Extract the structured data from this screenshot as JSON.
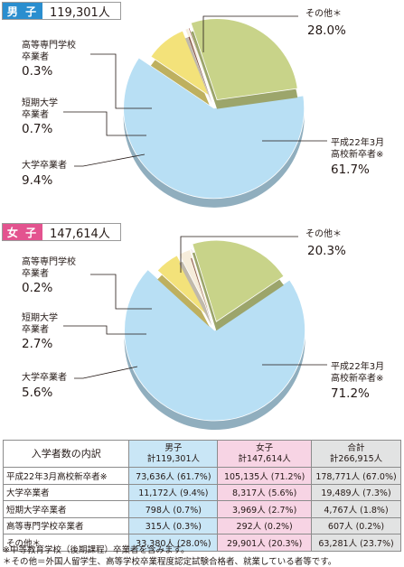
{
  "colors": {
    "male_tag": "#2a8ecf",
    "female_tag": "#e3538f",
    "hs": "#b8dff4",
    "other": "#c8d389",
    "univ": "#f3e27a",
    "jc": "#f6eddb",
    "tech": "#a5665a",
    "col_male": "#c9e6f6",
    "col_female": "#f7d4e4",
    "col_total": "#e2e3e3"
  },
  "male": {
    "tag": "男 子",
    "total": "119,301人",
    "labels": {
      "other": {
        "text": "その他＊",
        "pct": "28.0%"
      },
      "tech": {
        "line1": "高等専門学校",
        "line2": "卒業者",
        "pct": "0.3%"
      },
      "jc": {
        "line1": "短期大学",
        "line2": "卒業者",
        "pct": "0.7%"
      },
      "univ": {
        "text": "大学卒業者",
        "pct": "9.4%"
      },
      "hs": {
        "line1": "平成22年3月",
        "line2": "高校新卒者※",
        "pct": "61.7%"
      }
    }
  },
  "female": {
    "tag": "女 子",
    "total": "147,614人",
    "labels": {
      "other": {
        "text": "その他＊",
        "pct": "20.3%"
      },
      "tech": {
        "line1": "高等専門学校",
        "line2": "卒業者",
        "pct": "0.2%"
      },
      "jc": {
        "line1": "短期大学",
        "line2": "卒業者",
        "pct": "2.7%"
      },
      "univ": {
        "text": "大学卒業者",
        "pct": "5.6%"
      },
      "hs": {
        "line1": "平成22年3月",
        "line2": "高校新卒者※",
        "pct": "71.2%"
      }
    }
  },
  "chart_data": [
    {
      "type": "pie",
      "title": "男子",
      "categories": [
        "平成22年3月高校新卒者※",
        "大学卒業者",
        "短期大学卒業者",
        "高等専門学校卒業者",
        "その他＊"
      ],
      "values": [
        61.7,
        9.4,
        0.7,
        0.3,
        28.0
      ],
      "counts": [
        73636,
        11172,
        798,
        315,
        33380
      ]
    },
    {
      "type": "pie",
      "title": "女子",
      "categories": [
        "平成22年3月高校新卒者※",
        "大学卒業者",
        "短期大学卒業者",
        "高等専門学校卒業者",
        "その他＊"
      ],
      "values": [
        71.2,
        5.6,
        2.7,
        0.2,
        20.3
      ],
      "counts": [
        105135,
        8317,
        3969,
        292,
        29901
      ]
    }
  ],
  "table": {
    "headers": {
      "label": "入学者数の内訳",
      "male": {
        "line1": "男子",
        "line2": "計119,301人"
      },
      "female": {
        "line1": "女子",
        "line2": "計147,614人"
      },
      "total": {
        "line1": "合計",
        "line2": "計266,915人"
      }
    },
    "rows": [
      {
        "label": "平成22年3月高校新卒者※",
        "male": "73,636人 (61.7%)",
        "female": "105,135人 (71.2%)",
        "total": "178,771人 (67.0%)"
      },
      {
        "label": "大学卒業者",
        "male": "11,172人 (9.4%)",
        "female": "8,317人 (5.6%)",
        "total": "19,489人 (7.3%)"
      },
      {
        "label": "短期大学卒業者",
        "male": "798人 (0.7%)",
        "female": "3,969人 (2.7%)",
        "total": "4,767人 (1.8%)"
      },
      {
        "label": "高等専門学校卒業者",
        "male": "315人 (0.3%)",
        "female": "292人 (0.2%)",
        "total": "607人 (0.2%)"
      },
      {
        "label": "その他＊",
        "male": "33,380人 (28.0%)",
        "female": "29,901人 (20.3%)",
        "total": "63,281人 (23.7%)"
      }
    ]
  },
  "notes": [
    "※中等教育学校（後期課程）卒業者を含みます。",
    "＊その他＝外国人留学生、高等学校卒業程度認定試験合格者、就業している者等です。"
  ]
}
